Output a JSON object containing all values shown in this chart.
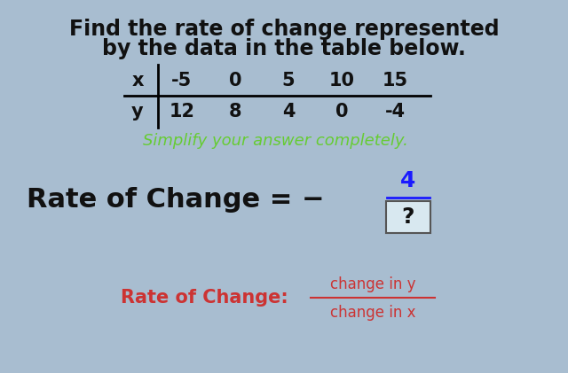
{
  "bg_color": "#a8bdd0",
  "title_line1": "Find the rate of change represented",
  "title_line2": "by the data in the table below.",
  "title_color": "#111111",
  "title_fontsize": 17,
  "table_x_label": "x",
  "table_y_label": "y",
  "table_x_values": [
    "-5",
    "0",
    "5",
    "10",
    "15"
  ],
  "table_y_values": [
    "12",
    "8",
    "4",
    "0",
    "-4"
  ],
  "simplify_text": "Simplify your answer completely.",
  "simplify_color": "#66cc33",
  "simplify_fontsize": 13,
  "rate_prefix": "Rate of Change = −",
  "rate_color": "#111111",
  "rate_fontsize": 22,
  "numerator": "4",
  "denominator": "?",
  "frac_color": "#1a1aff",
  "box_edge_color": "#555555",
  "box_face_color": "#d8e8f0",
  "hint_label": "Rate of Change:",
  "hint_numerator": "change in y",
  "hint_denominator": "change in x",
  "hint_color": "#cc3333",
  "hint_fontsize": 12
}
